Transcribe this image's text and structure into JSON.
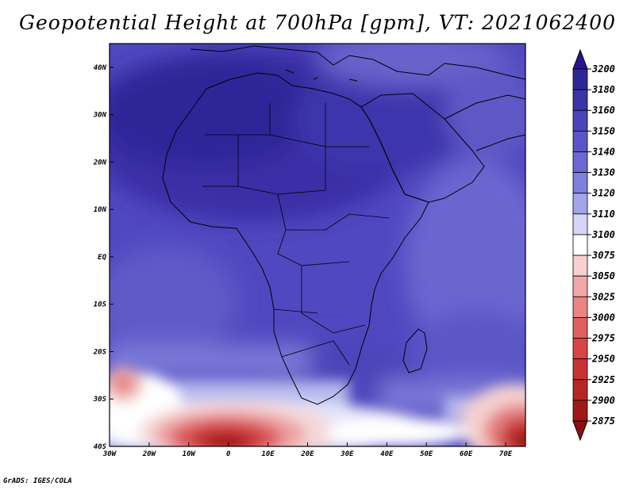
{
  "title": "Geopotential Height at 700hPa [gpm], VT: 2021062400",
  "credit": "GrADS: IGES/COLA",
  "map": {
    "lon_range": [
      -30,
      75
    ],
    "lat_range": [
      -40,
      45
    ],
    "lat_ticks": [
      {
        "value": 40,
        "label": "40N"
      },
      {
        "value": 30,
        "label": "30N"
      },
      {
        "value": 20,
        "label": "20N"
      },
      {
        "value": 10,
        "label": "10N"
      },
      {
        "value": 0,
        "label": "EQ"
      },
      {
        "value": -10,
        "label": "10S"
      },
      {
        "value": -20,
        "label": "20S"
      },
      {
        "value": -30,
        "label": "30S"
      },
      {
        "value": -40,
        "label": "40S"
      }
    ],
    "lon_ticks": [
      {
        "value": -30,
        "label": "30W"
      },
      {
        "value": -20,
        "label": "20W"
      },
      {
        "value": -10,
        "label": "10W"
      },
      {
        "value": 0,
        "label": "0"
      },
      {
        "value": 10,
        "label": "10E"
      },
      {
        "value": 20,
        "label": "20E"
      },
      {
        "value": 30,
        "label": "30E"
      },
      {
        "value": 40,
        "label": "40E"
      },
      {
        "value": 50,
        "label": "50E"
      },
      {
        "value": 60,
        "label": "60E"
      },
      {
        "value": 70,
        "label": "70E"
      }
    ]
  },
  "colorbar": {
    "levels": [
      "3200",
      "3180",
      "3160",
      "3150",
      "3140",
      "3130",
      "3120",
      "3110",
      "3100",
      "3075",
      "3050",
      "3025",
      "3000",
      "2975",
      "2950",
      "2925",
      "2900",
      "2875"
    ],
    "colors": [
      "#2a1590",
      "#2b2896",
      "#3a34a6",
      "#4b44b8",
      "#5a56c8",
      "#6a68d2",
      "#7f80dc",
      "#a3a5ea",
      "#d5d6f6",
      "#ffffff",
      "#f6d0d0",
      "#f0a8a8",
      "#e88585",
      "#e06060",
      "#d84545",
      "#c83232",
      "#b52626",
      "#a01818",
      "#8a1010"
    ]
  }
}
